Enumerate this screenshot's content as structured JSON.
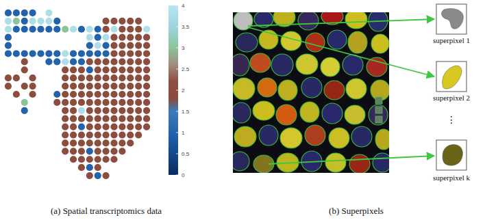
{
  "chart_data": {
    "type": "scatter",
    "title": "(a) Spatial transcriptomics data",
    "marker": "circle",
    "tick_labels": false,
    "xlim": [
      -0.5,
      17.5
    ],
    "ylim": [
      -0.5,
      20.5
    ],
    "colorbar_lim": [
      0,
      4
    ],
    "colorbar_ticks": [
      0,
      0.5,
      1,
      1.5,
      2,
      2.5,
      3,
      3.5,
      4
    ],
    "x": [
      0,
      1,
      2,
      3,
      5,
      0,
      1,
      2,
      3,
      4,
      5,
      6,
      12,
      13,
      14,
      15,
      16,
      0,
      1,
      2,
      3,
      4,
      5,
      6,
      7,
      8,
      9,
      10,
      11,
      12,
      13,
      14,
      15,
      16,
      17,
      0,
      10,
      11,
      12,
      13,
      14,
      15,
      16,
      17,
      0,
      10,
      11,
      12,
      13,
      14,
      15,
      16,
      17,
      0,
      1,
      2,
      3,
      4,
      5,
      6,
      7,
      8,
      9,
      10,
      11,
      12,
      13,
      14,
      15,
      16,
      17,
      2,
      5,
      6,
      7,
      8,
      9,
      10,
      11,
      12,
      13,
      14,
      15,
      16,
      17,
      2,
      7,
      8,
      9,
      10,
      11,
      12,
      13,
      14,
      15,
      16,
      17,
      0,
      1,
      3,
      7,
      8,
      9,
      10,
      11,
      12,
      13,
      14,
      15,
      16,
      17,
      0,
      2,
      3,
      7,
      8,
      9,
      10,
      11,
      12,
      13,
      14,
      15,
      16,
      17,
      1,
      3,
      6,
      7,
      8,
      9,
      10,
      11,
      12,
      13,
      14,
      15,
      16,
      17,
      2,
      6,
      7,
      8,
      9,
      10,
      11,
      12,
      13,
      14,
      15,
      16,
      17,
      2,
      7,
      8,
      9,
      10,
      11,
      12,
      13,
      14,
      15,
      16,
      17,
      7,
      8,
      9,
      10,
      11,
      12,
      13,
      14,
      15,
      16,
      17,
      7,
      8,
      9,
      10,
      11,
      12,
      13,
      14,
      15,
      16,
      17,
      7,
      8,
      9,
      10,
      11,
      12,
      13,
      14,
      15,
      16,
      7,
      8,
      9,
      10,
      11,
      12,
      13,
      14,
      15,
      7,
      8,
      9,
      10,
      11,
      12,
      13,
      14,
      8,
      9,
      10,
      11,
      12,
      13,
      9,
      10,
      11,
      10,
      11,
      12
    ],
    "values": [
      20,
      20,
      20,
      20,
      20,
      19,
      19,
      19,
      19,
      19,
      19,
      19,
      19,
      19,
      19,
      19,
      19,
      18,
      18,
      18,
      18,
      18,
      18,
      18,
      18,
      18,
      18,
      18,
      18,
      18,
      18,
      18,
      18,
      18,
      18,
      17,
      17,
      17,
      17,
      17,
      17,
      17,
      17,
      17,
      16,
      16,
      16,
      16,
      16,
      16,
      16,
      16,
      16,
      15,
      15,
      15,
      15,
      15,
      15,
      15,
      15,
      15,
      15,
      15,
      15,
      15,
      15,
      15,
      15,
      15,
      15,
      14,
      14,
      14,
      14,
      14,
      14,
      14,
      14,
      14,
      14,
      14,
      14,
      14,
      14,
      13,
      13,
      13,
      13,
      13,
      13,
      13,
      13,
      13,
      13,
      13,
      13,
      12,
      12,
      12,
      12,
      12,
      12,
      12,
      12,
      12,
      12,
      12,
      12,
      12,
      12,
      11,
      11,
      11,
      11,
      11,
      11,
      11,
      11,
      11,
      11,
      11,
      11,
      11,
      11,
      10,
      10,
      10,
      10,
      10,
      10,
      10,
      10,
      10,
      10,
      10,
      10,
      10,
      10,
      9,
      9,
      9,
      9,
      9,
      9,
      9,
      9,
      9,
      9,
      9,
      9,
      9,
      8,
      8,
      8,
      8,
      8,
      8,
      8,
      8,
      8,
      8,
      8,
      8,
      7,
      7,
      7,
      7,
      7,
      7,
      7,
      7,
      7,
      7,
      7,
      6,
      6,
      6,
      6,
      6,
      6,
      6,
      6,
      6,
      6,
      6,
      5,
      5,
      5,
      5,
      5,
      5,
      5,
      5,
      5,
      5,
      4,
      4,
      4,
      4,
      4,
      4,
      4,
      4,
      4,
      3,
      3,
      3,
      3,
      3,
      3,
      3,
      3,
      2,
      2,
      2,
      2,
      2,
      2,
      1,
      1,
      1,
      0,
      0,
      0
    ],
    "color_values": [
      1,
      1,
      1,
      1,
      3.8,
      3.8,
      3,
      1,
      3.8,
      3.8,
      3.8,
      1,
      2,
      2,
      2,
      2,
      2,
      3.8,
      1,
      1,
      1,
      1,
      1,
      1,
      3,
      3.8,
      1,
      3.8,
      1,
      2,
      3.8,
      2,
      2,
      2,
      3.8,
      1,
      3.8,
      1,
      3.8,
      2,
      2,
      2,
      2,
      2,
      1,
      1,
      3.8,
      1,
      2,
      2,
      2,
      2,
      2,
      1,
      1,
      1,
      1,
      1,
      1,
      1,
      3.8,
      1,
      1,
      1,
      1,
      1,
      2,
      2,
      2,
      2,
      2,
      2,
      1,
      1,
      3.8,
      1,
      1,
      2,
      2,
      2,
      2,
      2,
      2,
      2,
      2,
      2,
      2,
      2,
      2,
      1,
      2,
      2,
      2,
      2,
      2,
      2,
      2,
      2,
      2,
      2,
      2,
      2,
      2,
      2,
      2,
      2,
      2,
      2,
      2,
      2,
      2,
      2,
      2,
      2,
      2,
      2,
      2,
      2,
      2,
      2,
      2,
      2,
      2,
      2,
      2,
      2,
      2,
      1,
      2,
      2,
      2,
      2,
      2,
      2,
      2,
      2,
      2,
      2,
      2,
      3,
      2,
      2,
      2,
      2,
      2,
      2,
      2,
      2,
      2,
      2,
      2,
      2,
      1,
      2,
      2,
      3.8,
      2,
      2,
      2,
      2,
      2,
      2,
      2,
      2,
      2,
      2,
      2,
      2,
      2,
      2,
      2,
      2,
      2,
      2,
      2,
      2,
      2,
      1,
      2,
      2,
      2,
      2,
      2,
      2,
      2,
      2,
      2,
      2,
      2,
      2,
      2,
      2,
      2,
      2,
      2,
      2,
      2,
      2,
      2,
      2,
      2,
      2,
      2,
      2,
      2,
      2,
      2,
      2,
      1,
      2,
      2,
      2,
      2,
      2,
      2,
      2,
      2,
      2,
      2,
      2,
      1,
      2,
      2,
      1,
      2
    ]
  },
  "superpixels": {
    "caption": "(b) Superpixels",
    "labels": [
      "superpixel 1",
      "superpixel 2",
      "superpixel k"
    ],
    "ellipsis": "⋮"
  }
}
